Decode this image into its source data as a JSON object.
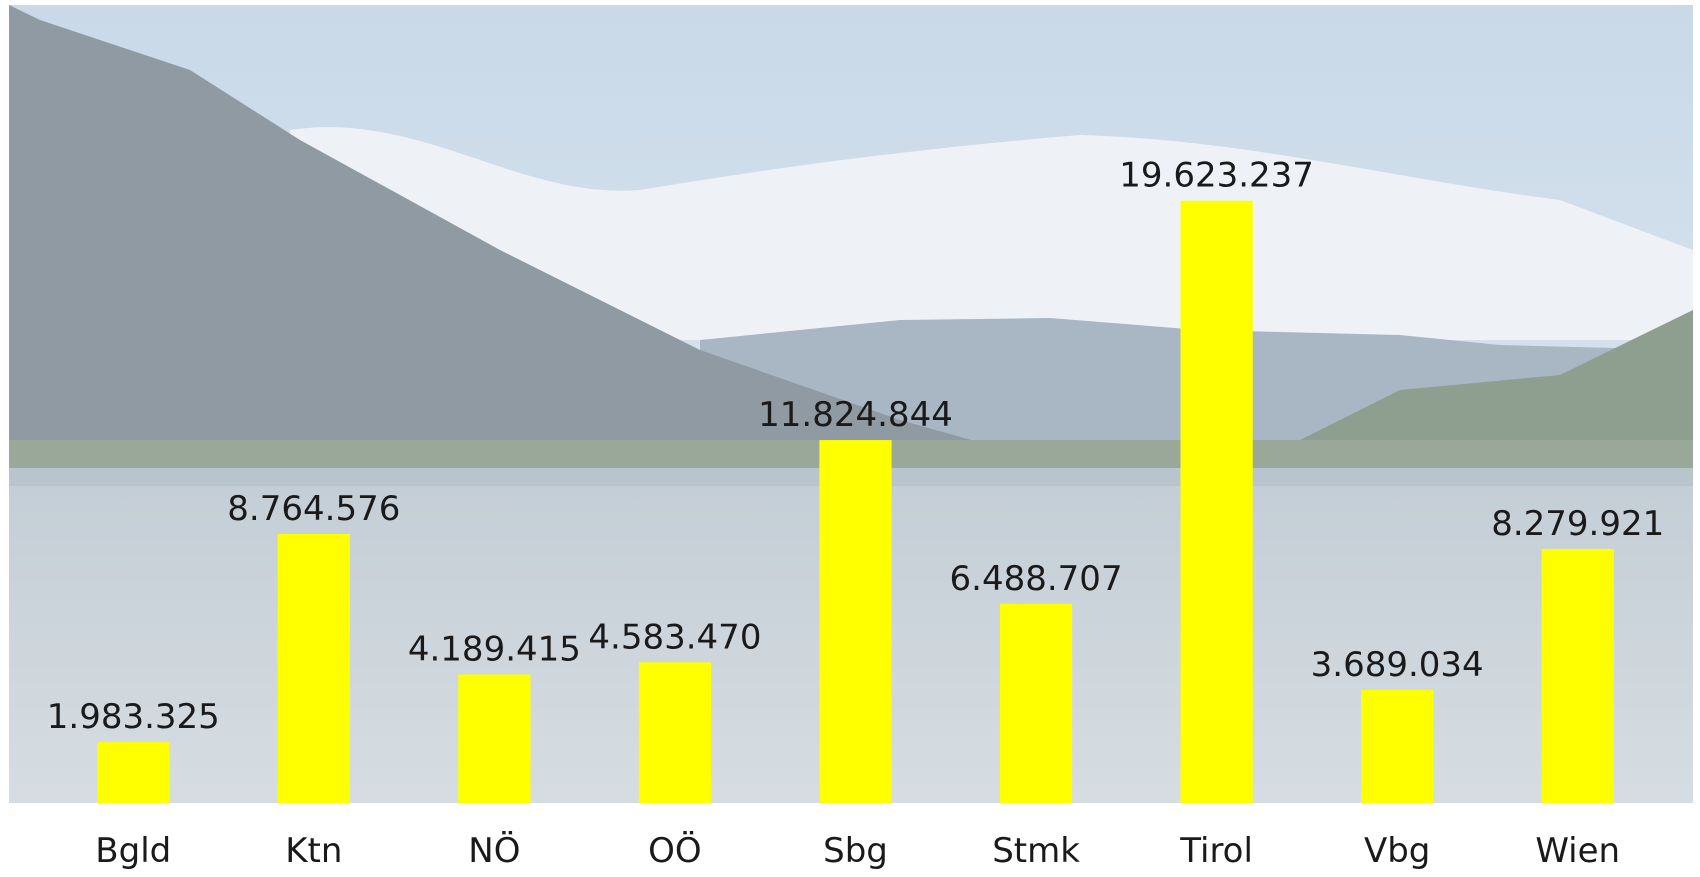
{
  "chart_data": {
    "type": "bar",
    "categories": [
      "Bgld",
      "Ktn",
      "NÖ",
      "OÖ",
      "Sbg",
      "Stmk",
      "Tirol",
      "Vbg",
      "Wien"
    ],
    "values": [
      1983325,
      8764576,
      4189415,
      4583470,
      11824844,
      6488707,
      19623237,
      3689034,
      8279921
    ],
    "value_labels": [
      "1.983.325",
      "8.764.576",
      "4.189.415",
      "4.583.470",
      "11.824.844",
      "6.488.707",
      "19.623.237",
      "3.689.034",
      "8.279.921"
    ],
    "color": "#ffff00",
    "ylim": [
      0,
      26000000
    ]
  }
}
